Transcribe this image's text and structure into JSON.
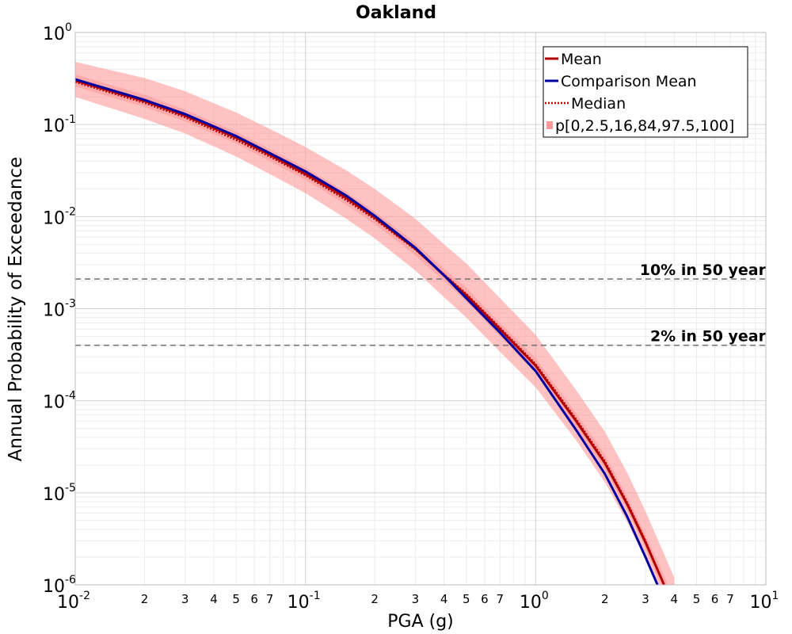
{
  "chart_data": {
    "type": "line",
    "title": "Oakland",
    "xlabel": "PGA (g)",
    "ylabel": "Annual Probability of Exceedance",
    "xscale": "log",
    "yscale": "log",
    "xlim": [
      0.01,
      10
    ],
    "ylim": [
      1e-06,
      1
    ],
    "grid": true,
    "legend_position": "top-right",
    "x_major_ticks": [
      {
        "value": 0.01,
        "base": "10",
        "exp": "-2"
      },
      {
        "value": 0.1,
        "base": "10",
        "exp": "-1"
      },
      {
        "value": 1,
        "base": "10",
        "exp": "0"
      },
      {
        "value": 10,
        "base": "10",
        "exp": "1"
      }
    ],
    "x_minor_tick_labels": [
      "2",
      "3",
      "4",
      "5",
      "6",
      "7"
    ],
    "y_major_ticks": [
      {
        "value": 1,
        "base": "10",
        "exp": "0"
      },
      {
        "value": 0.1,
        "base": "10",
        "exp": "-1"
      },
      {
        "value": 0.01,
        "base": "10",
        "exp": "-2"
      },
      {
        "value": 0.001,
        "base": "10",
        "exp": "-3"
      },
      {
        "value": 0.0001,
        "base": "10",
        "exp": "-4"
      },
      {
        "value": 1e-05,
        "base": "10",
        "exp": "-5"
      },
      {
        "value": 1e-06,
        "base": "10",
        "exp": "-6"
      }
    ],
    "x": [
      0.01,
      0.02,
      0.03,
      0.05,
      0.07,
      0.1,
      0.15,
      0.2,
      0.3,
      0.4,
      0.5,
      0.7,
      1.0,
      1.5,
      2.0,
      2.5,
      3.0,
      3.5,
      4.0
    ],
    "series": [
      {
        "name": "Mean",
        "color": "#b30000",
        "style": "solid",
        "values": [
          0.3,
          0.18,
          0.125,
          0.072,
          0.047,
          0.029,
          0.016,
          0.0098,
          0.0045,
          0.0023,
          0.0014,
          0.0006,
          0.00024,
          6e-05,
          2.1e-05,
          7.5e-06,
          2.9e-06,
          1.2e-06,
          5.5e-07
        ]
      },
      {
        "name": "Comparison Mean",
        "color": "#0000a0",
        "style": "solid",
        "values": [
          0.31,
          0.185,
          0.13,
          0.075,
          0.049,
          0.031,
          0.017,
          0.0102,
          0.0046,
          0.0023,
          0.0013,
          0.00055,
          0.00021,
          4.8e-05,
          1.6e-05,
          5.5e-06,
          2e-06,
          8.2e-07,
          3.5e-07
        ]
      },
      {
        "name": "Median",
        "color": "#b30000",
        "style": "dotted",
        "values": [
          0.29,
          0.172,
          0.12,
          0.068,
          0.045,
          0.028,
          0.0152,
          0.0094,
          0.0044,
          0.00235,
          0.00145,
          0.00062,
          0.00025,
          6.3e-05,
          2.2e-05,
          7.8e-06,
          3e-06,
          1.2e-06,
          5.7e-07
        ]
      }
    ],
    "bands": {
      "legend_label": "p[0,2.5,16,84,97.5,100]",
      "color": "#ff9999",
      "p2_5": [
        0.2,
        0.115,
        0.08,
        0.045,
        0.029,
        0.018,
        0.0095,
        0.0058,
        0.0026,
        0.00133,
        0.0008,
        0.00034,
        0.00014,
        3.7e-05,
        1.3e-05,
        4.8e-06,
        1.9e-06,
        8e-07,
        3.8e-07
      ],
      "p16": [
        0.26,
        0.155,
        0.108,
        0.062,
        0.04,
        0.025,
        0.0135,
        0.0083,
        0.0038,
        0.002,
        0.0012,
        0.0005,
        0.0002,
        5e-05,
        1.8e-05,
        6.5e-06,
        2.5e-06,
        1e-06,
        4.8e-07
      ],
      "p84": [
        0.35,
        0.21,
        0.145,
        0.083,
        0.054,
        0.034,
        0.0185,
        0.0113,
        0.0052,
        0.0027,
        0.0017,
        0.0007,
        0.00029,
        7.3e-05,
        2.6e-05,
        9e-06,
        3.5e-06,
        1.5e-06,
        6.8e-07
      ],
      "p97_5": [
        0.48,
        0.32,
        0.23,
        0.135,
        0.09,
        0.057,
        0.032,
        0.02,
        0.0095,
        0.005,
        0.0031,
        0.0013,
        0.00052,
        0.00013,
        4.6e-05,
        1.65e-05,
        6.3e-06,
        2.6e-06,
        1.2e-06
      ]
    },
    "reference_lines": [
      {
        "label": "10% in 50 year",
        "y": 0.0021
      },
      {
        "label": "2% in 50 year",
        "y": 0.0004
      }
    ]
  }
}
